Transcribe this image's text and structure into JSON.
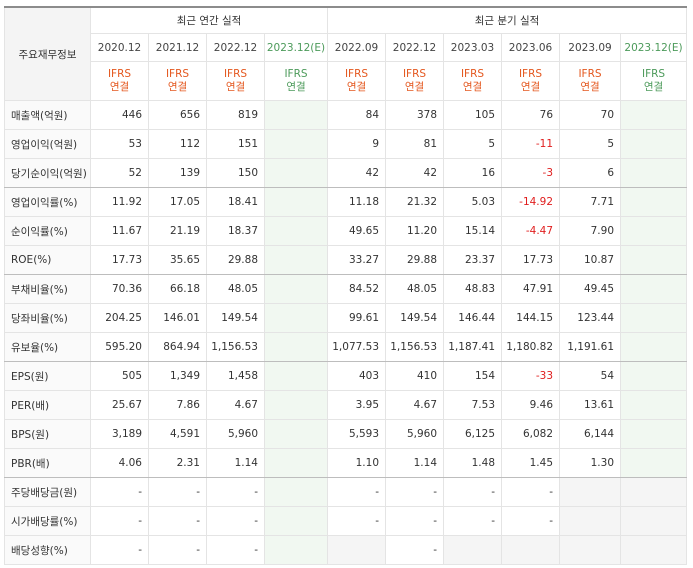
{
  "header": {
    "side_label": "주요재무정보",
    "annual_title": "최근 연간 실적",
    "quarter_title": "최근 분기 실적",
    "annual_periods": [
      "2020.12",
      "2021.12",
      "2022.12",
      "2023.12(E)"
    ],
    "quarter_periods": [
      "2022.09",
      "2022.12",
      "2023.03",
      "2023.06",
      "2023.09",
      "2023.12(E)"
    ],
    "ifrs_line1": "IFRS",
    "ifrs_line2": "연결"
  },
  "colors": {
    "ifrs": "#e4571e",
    "negative": "#e01d1d",
    "estimate_bg": "#f1f8f1"
  },
  "rows": [
    {
      "label": "매출액(억원)",
      "annual": [
        "446",
        "656",
        "819",
        ""
      ],
      "quarter": [
        "84",
        "378",
        "105",
        "76",
        "70",
        ""
      ]
    },
    {
      "label": "영업이익(억원)",
      "annual": [
        "53",
        "112",
        "151",
        ""
      ],
      "quarter": [
        "9",
        "81",
        "5",
        "-11",
        "5",
        ""
      ]
    },
    {
      "label": "당기순이익(억원)",
      "annual": [
        "52",
        "139",
        "150",
        ""
      ],
      "quarter": [
        "42",
        "42",
        "16",
        "-3",
        "6",
        ""
      ]
    },
    {
      "label": "영업이익률(%)",
      "annual": [
        "11.92",
        "17.05",
        "18.41",
        ""
      ],
      "quarter": [
        "11.18",
        "21.32",
        "5.03",
        "-14.92",
        "7.71",
        ""
      ]
    },
    {
      "label": "순이익률(%)",
      "annual": [
        "11.67",
        "21.19",
        "18.37",
        ""
      ],
      "quarter": [
        "49.65",
        "11.20",
        "15.14",
        "-4.47",
        "7.90",
        ""
      ]
    },
    {
      "label": "ROE(%)",
      "annual": [
        "17.73",
        "35.65",
        "29.88",
        ""
      ],
      "quarter": [
        "33.27",
        "29.88",
        "23.37",
        "17.73",
        "10.87",
        ""
      ]
    },
    {
      "label": "부채비율(%)",
      "annual": [
        "70.36",
        "66.18",
        "48.05",
        ""
      ],
      "quarter": [
        "84.52",
        "48.05",
        "48.83",
        "47.91",
        "49.45",
        ""
      ]
    },
    {
      "label": "당좌비율(%)",
      "annual": [
        "204.25",
        "146.01",
        "149.54",
        ""
      ],
      "quarter": [
        "99.61",
        "149.54",
        "146.44",
        "144.15",
        "123.44",
        ""
      ]
    },
    {
      "label": "유보율(%)",
      "annual": [
        "595.20",
        "864.94",
        "1,156.53",
        ""
      ],
      "quarter": [
        "1,077.53",
        "1,156.53",
        "1,187.41",
        "1,180.82",
        "1,191.61",
        ""
      ]
    },
    {
      "label": "EPS(원)",
      "annual": [
        "505",
        "1,349",
        "1,458",
        ""
      ],
      "quarter": [
        "403",
        "410",
        "154",
        "-33",
        "54",
        ""
      ]
    },
    {
      "label": "PER(배)",
      "annual": [
        "25.67",
        "7.86",
        "4.67",
        ""
      ],
      "quarter": [
        "3.95",
        "4.67",
        "7.53",
        "9.46",
        "13.61",
        ""
      ]
    },
    {
      "label": "BPS(원)",
      "annual": [
        "3,189",
        "4,591",
        "5,960",
        ""
      ],
      "quarter": [
        "5,593",
        "5,960",
        "6,125",
        "6,082",
        "6,144",
        ""
      ]
    },
    {
      "label": "PBR(배)",
      "annual": [
        "4.06",
        "2.31",
        "1.14",
        ""
      ],
      "quarter": [
        "1.10",
        "1.14",
        "1.48",
        "1.45",
        "1.30",
        ""
      ]
    },
    {
      "label": "주당배당금(원)",
      "annual": [
        "-",
        "-",
        "-",
        ""
      ],
      "quarter": [
        "-",
        "-",
        "-",
        "-",
        "",
        ""
      ]
    },
    {
      "label": "시가배당률(%)",
      "annual": [
        "-",
        "-",
        "-",
        ""
      ],
      "quarter": [
        "-",
        "-",
        "-",
        "-",
        "",
        ""
      ]
    },
    {
      "label": "배당성향(%)",
      "annual": [
        "-",
        "-",
        "-",
        ""
      ],
      "quarter": [
        "",
        "-",
        "",
        "",
        "",
        ""
      ]
    }
  ]
}
